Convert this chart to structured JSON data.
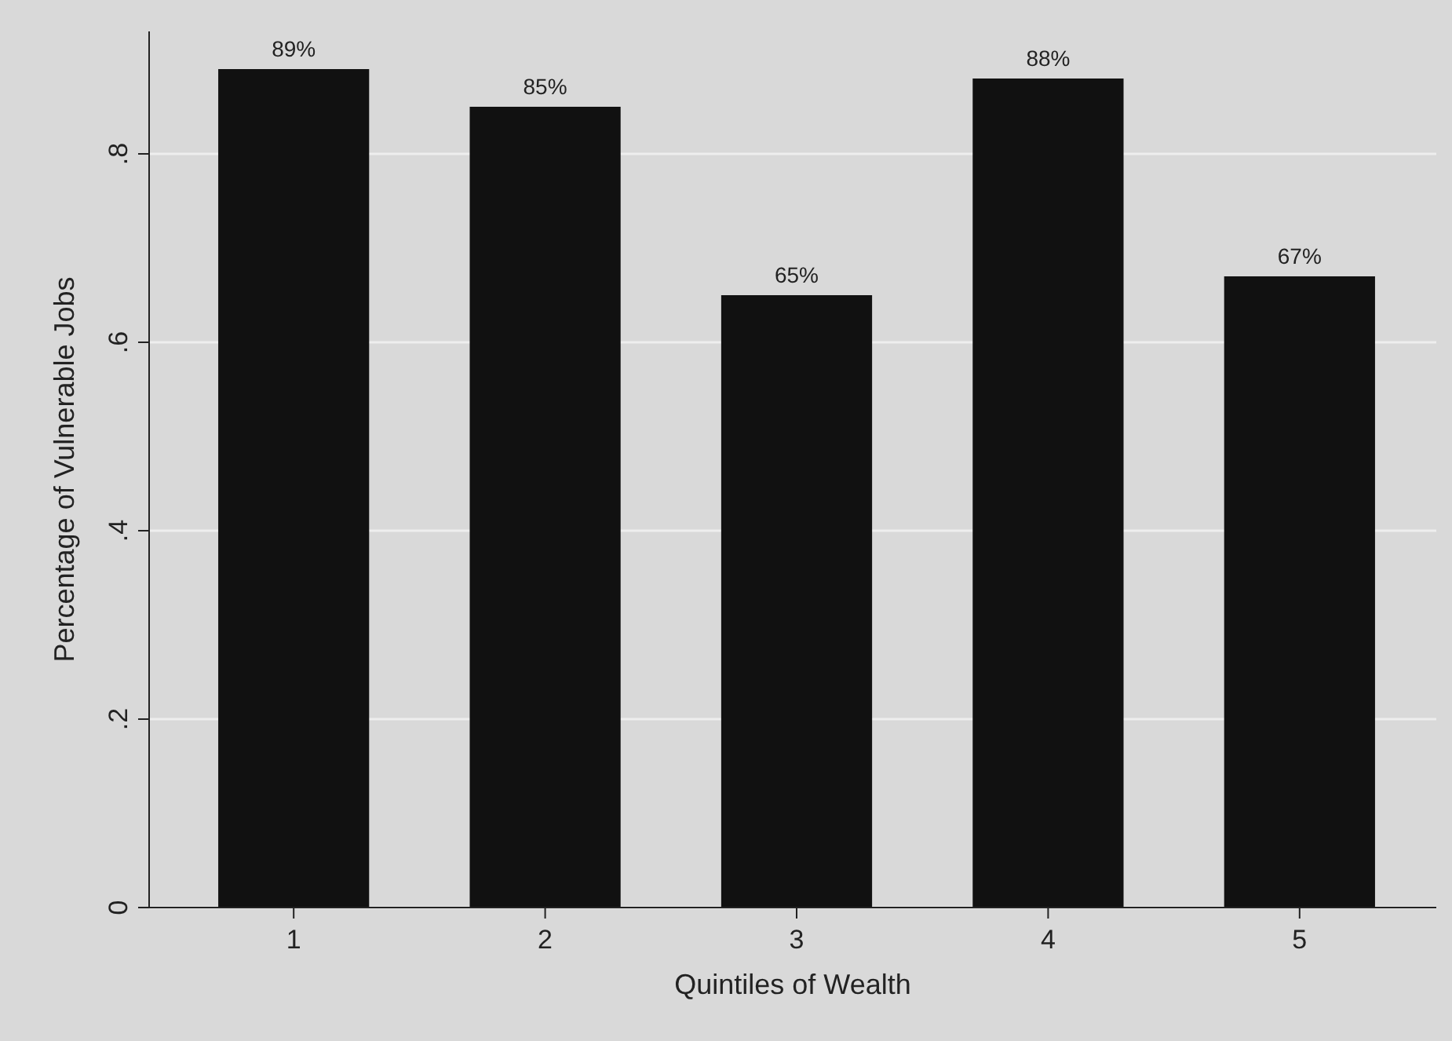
{
  "chart_data": {
    "type": "bar",
    "xlabel": "Quintiles of Wealth",
    "ylabel": "Percentage of Vulnerable Jobs",
    "categories": [
      "1",
      "2",
      "3",
      "4",
      "5"
    ],
    "values": [
      0.89,
      0.85,
      0.65,
      0.88,
      0.67
    ],
    "value_labels": [
      "89%",
      "85%",
      "65%",
      "88%",
      "67%"
    ],
    "color": "#111111",
    "ylim": [
      0,
      0.93
    ],
    "yticks": [
      {
        "value": 0,
        "label": "0"
      },
      {
        "value": 0.2,
        "label": ".2"
      },
      {
        "value": 0.4,
        "label": ".4"
      },
      {
        "value": 0.6,
        "label": ".6"
      },
      {
        "value": 0.8,
        "label": ".8"
      }
    ],
    "grid": "y"
  }
}
